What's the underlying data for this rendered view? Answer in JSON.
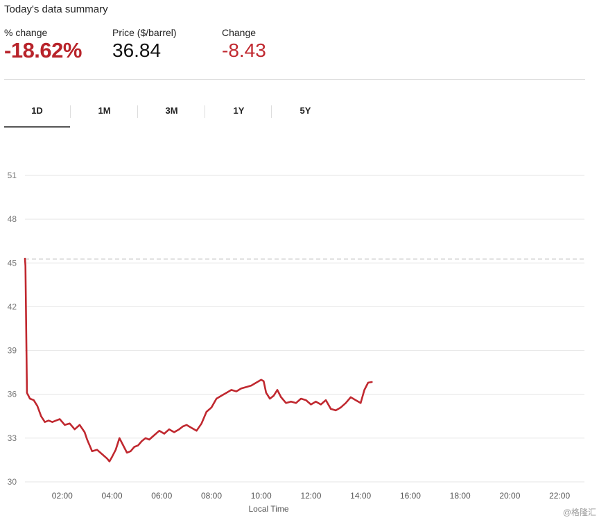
{
  "summary": {
    "title": "Today's data summary",
    "pct_change_label": "% change",
    "pct_change_value": "-18.62%",
    "price_label": "Price ($/barrel)",
    "price_value": "36.84",
    "change_label": "Change",
    "change_value": "-8.43"
  },
  "tabs": [
    "1D",
    "1M",
    "3M",
    "1Y",
    "5Y"
  ],
  "active_tab": "1D",
  "watermark": "@格隆汇",
  "colors": {
    "line": "#c0282f",
    "negative": "#b8232a",
    "grid": "#e6e6e6",
    "reference": "#cccccc"
  },
  "chart_data": {
    "type": "line",
    "xlabel": "Local Time",
    "ylabel": "",
    "ylim": [
      30,
      51
    ],
    "yticks": [
      30,
      33,
      36,
      39,
      42,
      45,
      48,
      51
    ],
    "xlim": [
      0.5,
      23.0
    ],
    "xticks": [
      "02:00",
      "04:00",
      "06:00",
      "08:00",
      "10:00",
      "12:00",
      "14:00",
      "16:00",
      "18:00",
      "20:00",
      "22:00"
    ],
    "xtick_hours": [
      2,
      4,
      6,
      8,
      10,
      12,
      14,
      16,
      18,
      20,
      22
    ],
    "reference_value": 45.27,
    "grid": true,
    "series": [
      {
        "x": [
          0.5,
          0.52,
          0.58,
          0.7,
          0.85,
          1.0,
          1.15,
          1.3,
          1.45,
          1.6,
          1.75,
          1.9,
          2.1,
          2.3,
          2.5,
          2.7,
          2.9,
          3.0,
          3.2,
          3.4,
          3.6,
          3.8,
          3.9,
          4.0,
          4.15,
          4.3,
          4.45,
          4.6,
          4.75,
          4.9,
          5.05,
          5.2,
          5.35,
          5.5,
          5.7,
          5.9,
          6.1,
          6.3,
          6.5,
          6.7,
          6.85,
          7.0,
          7.2,
          7.4,
          7.6,
          7.8,
          8.0,
          8.2,
          8.4,
          8.6,
          8.8,
          9.0,
          9.2,
          9.4,
          9.6,
          9.8,
          10.0,
          10.1,
          10.2,
          10.35,
          10.5,
          10.65,
          10.8,
          11.0,
          11.2,
          11.4,
          11.6,
          11.8,
          12.0,
          12.2,
          12.4,
          12.6,
          12.8,
          13.0,
          13.2,
          13.4,
          13.6,
          13.8,
          14.0,
          14.15,
          14.3,
          14.45
        ],
        "y": [
          45.3,
          44.8,
          36.1,
          35.7,
          35.6,
          35.2,
          34.5,
          34.1,
          34.2,
          34.1,
          34.2,
          34.3,
          33.9,
          34.0,
          33.6,
          33.9,
          33.4,
          32.9,
          32.1,
          32.2,
          31.9,
          31.6,
          31.4,
          31.7,
          32.2,
          33.0,
          32.5,
          32.0,
          32.1,
          32.4,
          32.5,
          32.8,
          33.0,
          32.9,
          33.2,
          33.5,
          33.3,
          33.6,
          33.4,
          33.6,
          33.8,
          33.9,
          33.7,
          33.5,
          34.0,
          34.8,
          35.1,
          35.7,
          35.9,
          36.1,
          36.3,
          36.2,
          36.4,
          36.5,
          36.6,
          36.8,
          37.0,
          36.9,
          36.1,
          35.7,
          35.9,
          36.3,
          35.8,
          35.4,
          35.5,
          35.4,
          35.7,
          35.6,
          35.3,
          35.5,
          35.3,
          35.6,
          35.0,
          34.9,
          35.1,
          35.4,
          35.8,
          35.6,
          35.4,
          36.3,
          36.8,
          36.84
        ]
      }
    ]
  }
}
